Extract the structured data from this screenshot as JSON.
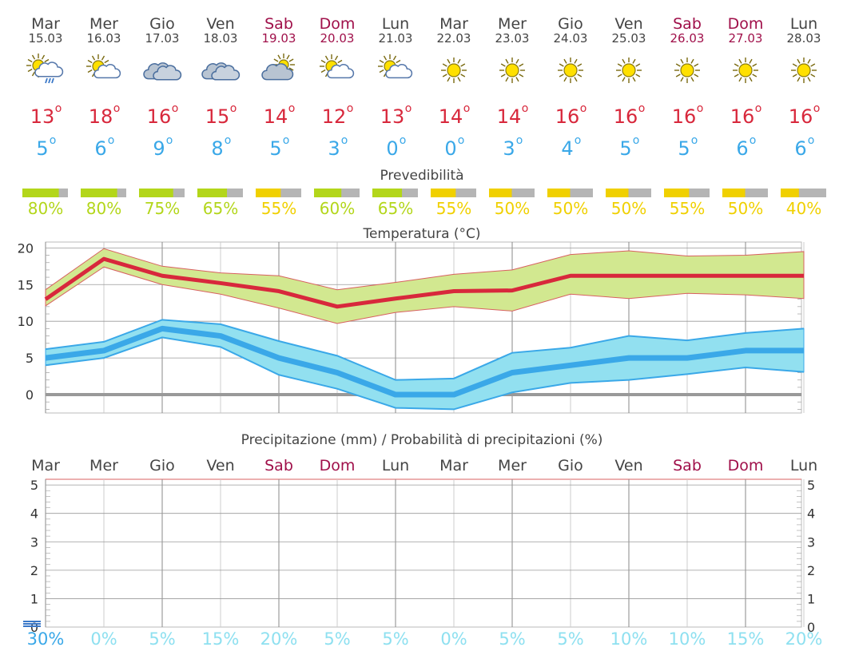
{
  "days": [
    {
      "name": "Mar",
      "date": "15.03",
      "weekend": false,
      "icon": "sun-cloud-rain-icon",
      "tmax": "13",
      "tmin": "5",
      "pred": 80,
      "pred_label": "80%",
      "pred_color": "#b3d61a",
      "rain_prob": "30%"
    },
    {
      "name": "Mer",
      "date": "16.03",
      "weekend": false,
      "icon": "sun-cloud-icon",
      "tmax": "18",
      "tmin": "6",
      "pred": 80,
      "pred_label": "80%",
      "pred_color": "#b3d61a",
      "rain_prob": "0%"
    },
    {
      "name": "Gio",
      "date": "17.03",
      "weekend": false,
      "icon": "cloud-icon",
      "tmax": "16",
      "tmin": "9",
      "pred": 75,
      "pred_label": "75%",
      "pred_color": "#b3d61a",
      "rain_prob": "5%"
    },
    {
      "name": "Ven",
      "date": "18.03",
      "weekend": false,
      "icon": "cloud-icon",
      "tmax": "15",
      "tmin": "8",
      "pred": 65,
      "pred_label": "65%",
      "pred_color": "#b3d61a",
      "rain_prob": "15%"
    },
    {
      "name": "Sab",
      "date": "19.03",
      "weekend": true,
      "icon": "cloud-sun-icon",
      "tmax": "14",
      "tmin": "5",
      "pred": 55,
      "pred_label": "55%",
      "pred_color": "#f0d000",
      "rain_prob": "20%"
    },
    {
      "name": "Dom",
      "date": "20.03",
      "weekend": true,
      "icon": "sun-cloud-icon",
      "tmax": "12",
      "tmin": "3",
      "pred": 60,
      "pred_label": "60%",
      "pred_color": "#b3d61a",
      "rain_prob": "5%"
    },
    {
      "name": "Lun",
      "date": "21.03",
      "weekend": false,
      "icon": "sun-cloud-icon",
      "tmax": "13",
      "tmin": "0",
      "pred": 65,
      "pred_label": "65%",
      "pred_color": "#b3d61a",
      "rain_prob": "5%"
    },
    {
      "name": "Mar",
      "date": "22.03",
      "weekend": false,
      "icon": "sun-icon",
      "tmax": "14",
      "tmin": "0",
      "pred": 55,
      "pred_label": "55%",
      "pred_color": "#f0d000",
      "rain_prob": "0%"
    },
    {
      "name": "Mer",
      "date": "23.03",
      "weekend": false,
      "icon": "sun-icon",
      "tmax": "14",
      "tmin": "3",
      "pred": 50,
      "pred_label": "50%",
      "pred_color": "#f0d000",
      "rain_prob": "5%"
    },
    {
      "name": "Gio",
      "date": "24.03",
      "weekend": false,
      "icon": "sun-icon",
      "tmax": "16",
      "tmin": "4",
      "pred": 50,
      "pred_label": "50%",
      "pred_color": "#f0d000",
      "rain_prob": "5%"
    },
    {
      "name": "Ven",
      "date": "25.03",
      "weekend": false,
      "icon": "sun-icon",
      "tmax": "16",
      "tmin": "5",
      "pred": 50,
      "pred_label": "50%",
      "pred_color": "#f0d000",
      "rain_prob": "10%"
    },
    {
      "name": "Sab",
      "date": "26.03",
      "weekend": true,
      "icon": "sun-icon",
      "tmax": "16",
      "tmin": "5",
      "pred": 55,
      "pred_label": "55%",
      "pred_color": "#f0d000",
      "rain_prob": "10%"
    },
    {
      "name": "Dom",
      "date": "27.03",
      "weekend": true,
      "icon": "sun-icon",
      "tmax": "16",
      "tmin": "6",
      "pred": 50,
      "pred_label": "50%",
      "pred_color": "#f0d000",
      "rain_prob": "15%"
    },
    {
      "name": "Lun",
      "date": "28.03",
      "weekend": false,
      "icon": "sun-icon",
      "tmax": "16",
      "tmin": "6",
      "pred": 40,
      "pred_label": "40%",
      "pred_color": "#f0d000",
      "rain_prob": "20%"
    }
  ],
  "degree_symbol": "o",
  "predictability_title": "Prevedibilità",
  "temperature_title": "Temperatura (°C)",
  "precip_title": "Precipitazione (mm) / Probabilità di precipitazioni (%)",
  "colors": {
    "weekday": "#444444",
    "weekend": "#a0104a",
    "tmax": "#d8283c",
    "tmin": "#3aa8e8",
    "tmax_band": "#d2e890",
    "tmin_band": "#92e0f0",
    "zero_line": "#999999",
    "rain_prob_first": "#3aa8e8",
    "rain_prob": "#8ee0f0"
  },
  "chart_data": [
    {
      "type": "line",
      "title": "Temperatura (°C)",
      "categories": [
        "15.03",
        "16.03",
        "17.03",
        "18.03",
        "19.03",
        "20.03",
        "21.03",
        "22.03",
        "23.03",
        "24.03",
        "25.03",
        "26.03",
        "27.03",
        "28.03"
      ],
      "series": [
        {
          "name": "",
          "values": [
            13,
            18.5,
            16.2,
            15.2,
            14.1,
            12,
            13.1,
            14.1,
            14.2,
            16.2,
            16.2,
            16.2,
            16.2,
            16.2
          ]
        },
        {
          "name": "",
          "values": [
            14.3,
            19.9,
            17.5,
            16.6,
            16.2,
            14.3,
            15.3,
            16.4,
            17.0,
            19.1,
            19.6,
            18.9,
            19.0,
            19.5
          ]
        },
        {
          "name": "",
          "values": [
            12.1,
            17.4,
            15.0,
            13.7,
            11.8,
            9.7,
            11.2,
            12.0,
            11.4,
            13.7,
            13.1,
            13.8,
            13.6,
            13.1
          ]
        },
        {
          "name": "",
          "values": [
            5,
            6,
            9,
            8,
            5,
            3,
            0,
            0,
            3,
            4,
            5,
            5,
            6,
            6
          ]
        },
        {
          "name": "",
          "values": [
            6.2,
            7.2,
            10.2,
            9.6,
            7.3,
            5.3,
            2.0,
            2.2,
            5.7,
            6.4,
            8.0,
            7.4,
            8.4,
            9.0
          ]
        },
        {
          "name": "",
          "values": [
            4.0,
            5.0,
            7.8,
            6.5,
            2.7,
            0.8,
            -1.8,
            -2.0,
            0.3,
            1.6,
            2.0,
            2.8,
            3.7,
            3.1
          ]
        }
      ],
      "ylim": [
        -2.5,
        20.8
      ],
      "yticks": [
        "0",
        "5",
        "10",
        "15",
        "20"
      ],
      "grid": true
    },
    {
      "type": "bar",
      "title": "Precipitazione (mm) / Probabilità di precipitazioni (%)",
      "categories": [
        "Mar",
        "Mer",
        "Gio",
        "Ven",
        "Sab",
        "Dom",
        "Lun",
        "Mar",
        "Mer",
        "Gio",
        "Ven",
        "Sab",
        "Dom",
        "Lun"
      ],
      "values": [
        0.1,
        0,
        0,
        0,
        0,
        0,
        0,
        0,
        0,
        0,
        0,
        0,
        0,
        0
      ],
      "ylim": [
        0,
        5.2
      ],
      "yticks": [
        "0",
        "1",
        "2",
        "3",
        "4",
        "5"
      ],
      "probability": [
        "30%",
        "0%",
        "5%",
        "15%",
        "20%",
        "5%",
        "5%",
        "0%",
        "5%",
        "5%",
        "10%",
        "10%",
        "15%",
        "20%"
      ]
    }
  ]
}
